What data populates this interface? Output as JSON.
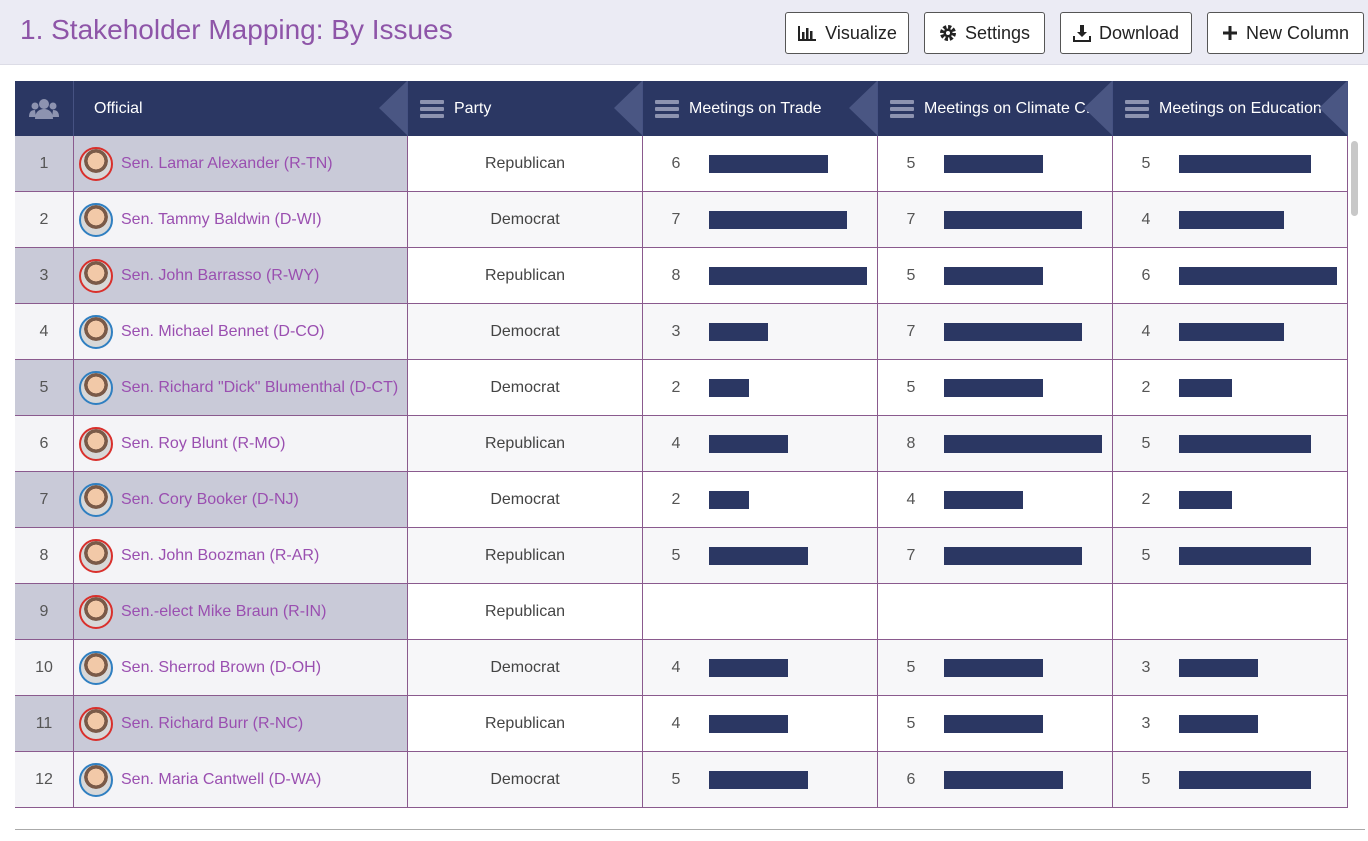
{
  "header": {
    "title": "1. Stakeholder Mapping: By Issues",
    "buttons": [
      "Visualize",
      "Settings",
      "Download",
      "New Column"
    ]
  },
  "table": {
    "columns": [
      "Official",
      "Party",
      "Meetings on Trade",
      "Meetings on Climate C...",
      "Meetings on Education"
    ],
    "bar_color": "#2b3763",
    "rows": [
      {
        "index": 1,
        "official": "Sen. Lamar Alexander (R-TN)",
        "ring": "#d9302c",
        "party": "Republican",
        "values": [
          6,
          5,
          5
        ]
      },
      {
        "index": 2,
        "official": "Sen. Tammy Baldwin (D-WI)",
        "ring": "#2f7fc1",
        "party": "Democrat",
        "values": [
          7,
          7,
          4
        ]
      },
      {
        "index": 3,
        "official": "Sen. John Barrasso (R-WY)",
        "ring": "#d9302c",
        "party": "Republican",
        "values": [
          8,
          5,
          6
        ]
      },
      {
        "index": 4,
        "official": "Sen. Michael Bennet (D-CO)",
        "ring": "#2f7fc1",
        "party": "Democrat",
        "values": [
          3,
          7,
          4
        ]
      },
      {
        "index": 5,
        "official": "Sen. Richard \"Dick\" Blumenthal (D-CT)",
        "ring": "#2f7fc1",
        "party": "Democrat",
        "values": [
          2,
          5,
          2
        ]
      },
      {
        "index": 6,
        "official": "Sen. Roy Blunt (R-MO)",
        "ring": "#d9302c",
        "party": "Republican",
        "values": [
          4,
          8,
          5
        ]
      },
      {
        "index": 7,
        "official": "Sen. Cory Booker (D-NJ)",
        "ring": "#2f7fc1",
        "party": "Democrat",
        "values": [
          2,
          4,
          2
        ]
      },
      {
        "index": 8,
        "official": "Sen. John Boozman (R-AR)",
        "ring": "#d9302c",
        "party": "Republican",
        "values": [
          5,
          7,
          5
        ]
      },
      {
        "index": 9,
        "official": "Sen.-elect Mike Braun (R-IN)",
        "ring": "#d9302c",
        "party": "Republican",
        "values": [
          null,
          null,
          null
        ]
      },
      {
        "index": 10,
        "official": "Sen. Sherrod Brown (D-OH)",
        "ring": "#2f7fc1",
        "party": "Democrat",
        "values": [
          4,
          5,
          3
        ]
      },
      {
        "index": 11,
        "official": "Sen. Richard Burr (R-NC)",
        "ring": "#d9302c",
        "party": "Republican",
        "values": [
          4,
          5,
          3
        ]
      },
      {
        "index": 12,
        "official": "Sen. Maria Cantwell (D-WA)",
        "ring": "#2f7fc1",
        "party": "Democrat",
        "values": [
          5,
          6,
          5
        ]
      }
    ]
  }
}
